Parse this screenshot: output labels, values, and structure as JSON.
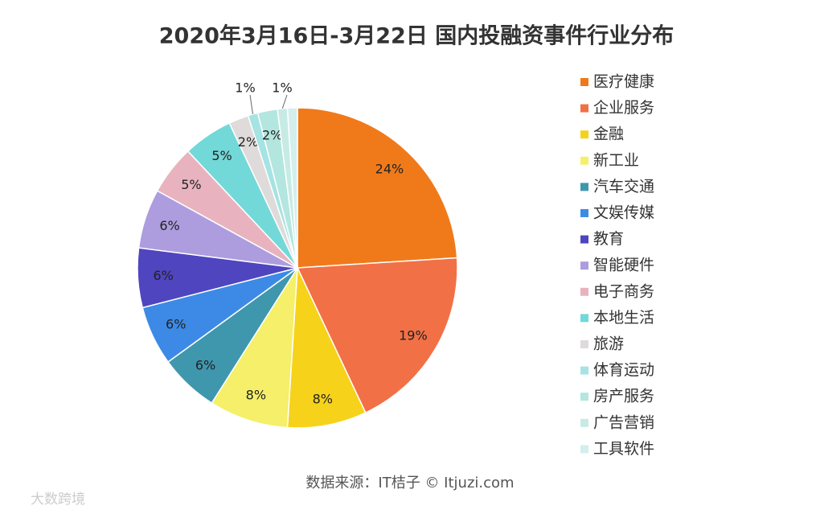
{
  "chart_data": {
    "type": "pie",
    "title": "2020年3月16日-3月22日 国内投融资事件行业分布",
    "categories": [
      "医疗健康",
      "企业服务",
      "金融",
      "新工业",
      "汽车交通",
      "文娱传媒",
      "教育",
      "智能硬件",
      "电子商务",
      "本地生活",
      "旅游",
      "体育运动",
      "房产服务",
      "广告营销",
      "工具软件"
    ],
    "values": [
      24,
      19,
      8,
      8,
      6,
      6,
      6,
      6,
      5,
      5,
      2,
      1,
      2,
      1,
      1
    ],
    "value_labels": [
      "24%",
      "19%",
      "8%",
      "8%",
      "6%",
      "6%",
      "6%",
      "6%",
      "5%",
      "5%",
      "2%",
      "1%",
      "2%",
      "1%",
      null
    ],
    "colors": [
      "#f07a1a",
      "#f27046",
      "#f6d21a",
      "#f5ef6a",
      "#3f97ae",
      "#3d8ae6",
      "#4f45bf",
      "#ad9ddf",
      "#e8b3bf",
      "#73d8d8",
      "#dfdbdb",
      "#a6e3e3",
      "#b3e6df",
      "#c6ebe4",
      "#d3efed"
    ],
    "legend": "right",
    "source": "数据来源：IT桔子 © Itjuzi.com",
    "watermark": "大数跨境"
  }
}
